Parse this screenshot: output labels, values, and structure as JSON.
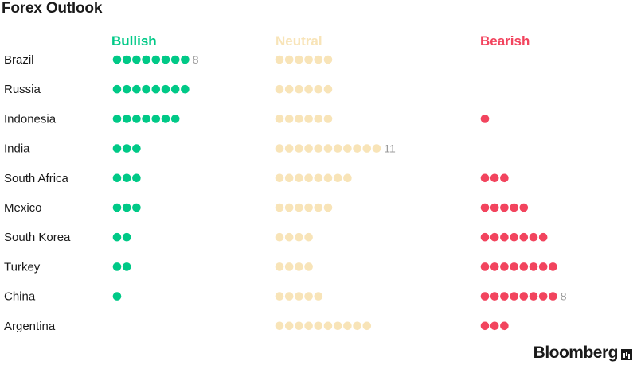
{
  "title": "Forex Outlook",
  "brand": "Bloomberg",
  "colors": {
    "bullish": "#00c987",
    "neutral": "#f8e4b8",
    "bearish": "#f2445e",
    "count_label": "#9b9b9b"
  },
  "chart_data": {
    "type": "table",
    "title": "Forex Outlook",
    "columns": [
      "Bullish",
      "Neutral",
      "Bearish"
    ],
    "rows": [
      {
        "country": "Brazil",
        "bullish": 8,
        "neutral": 6,
        "bearish": 0,
        "labeled": "bullish"
      },
      {
        "country": "Russia",
        "bullish": 8,
        "neutral": 6,
        "bearish": 0
      },
      {
        "country": "Indonesia",
        "bullish": 7,
        "neutral": 6,
        "bearish": 1
      },
      {
        "country": "India",
        "bullish": 3,
        "neutral": 11,
        "bearish": 0,
        "labeled": "neutral"
      },
      {
        "country": "South Africa",
        "bullish": 3,
        "neutral": 8,
        "bearish": 3
      },
      {
        "country": "Mexico",
        "bullish": 3,
        "neutral": 6,
        "bearish": 5
      },
      {
        "country": "South Korea",
        "bullish": 2,
        "neutral": 4,
        "bearish": 7
      },
      {
        "country": "Turkey",
        "bullish": 2,
        "neutral": 4,
        "bearish": 8
      },
      {
        "country": "China",
        "bullish": 1,
        "neutral": 5,
        "bearish": 8,
        "labeled": "bearish"
      },
      {
        "country": "Argentina",
        "bullish": 0,
        "neutral": 10,
        "bearish": 3
      }
    ]
  }
}
